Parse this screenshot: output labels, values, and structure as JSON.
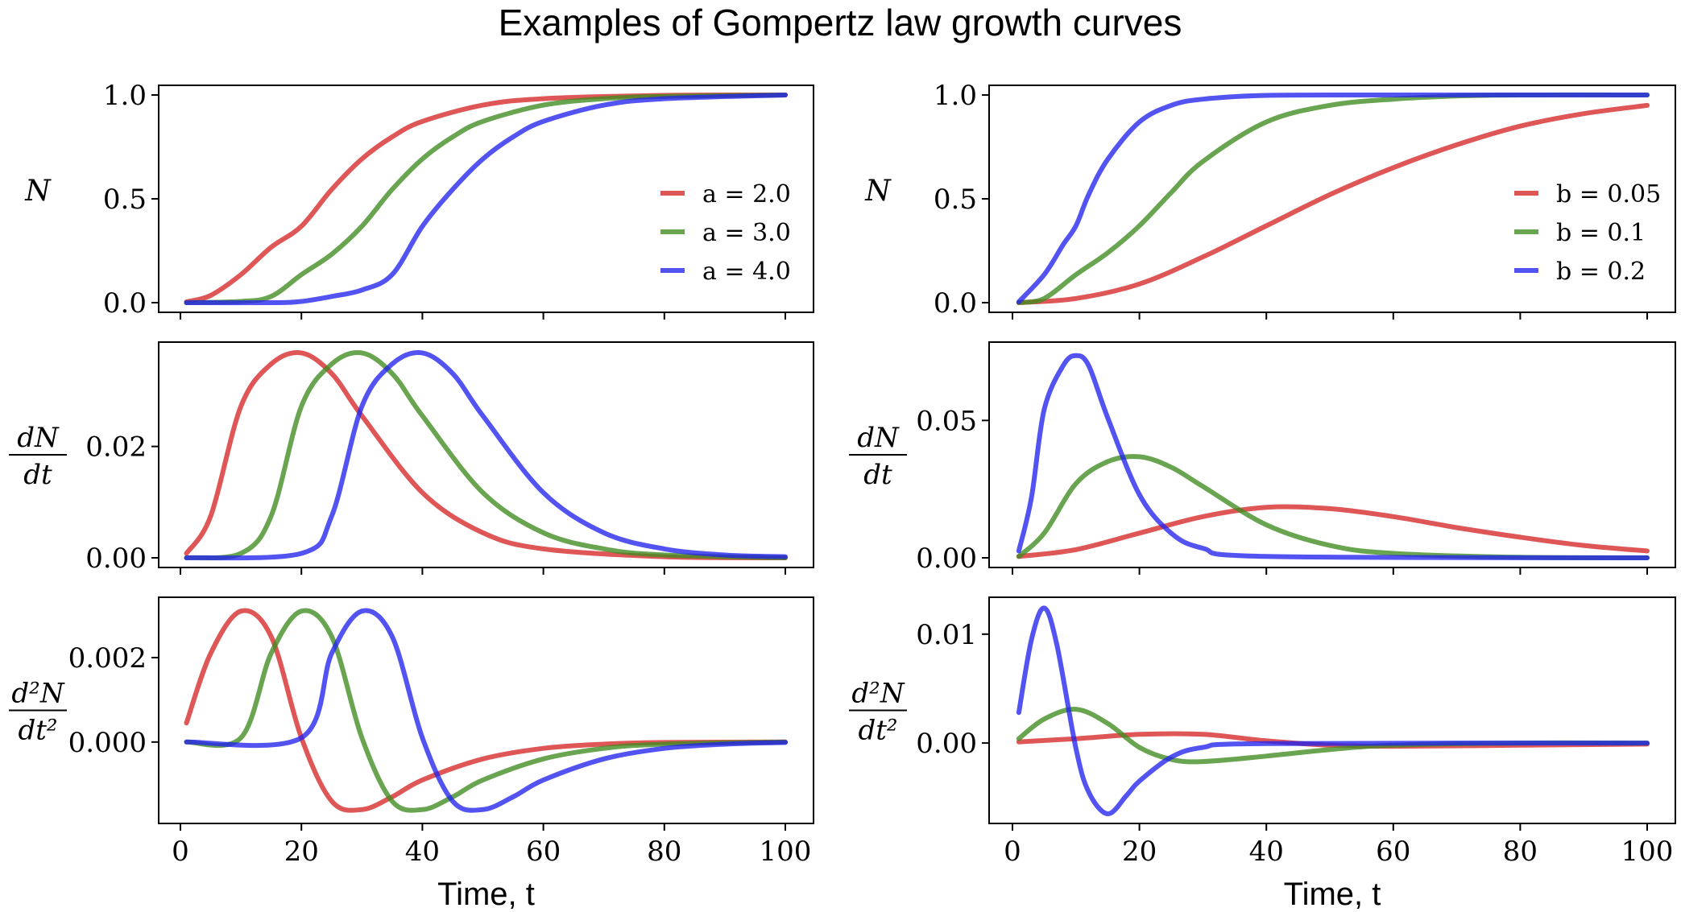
{
  "figure": {
    "title": "Examples of Gompertz law growth curves"
  },
  "colors": {
    "red": "#d62728",
    "green": "#3f8a1f",
    "blue": "#2222ee"
  },
  "chart_data": [
    {
      "type": "line",
      "panel": "left-top",
      "ylabel": "N",
      "xlabel": "",
      "xlim": [
        0,
        100
      ],
      "ylim": [
        0,
        1
      ],
      "xticks": [
        0,
        20,
        40,
        60,
        80,
        100
      ],
      "yticks": [
        "0.0",
        "0.5",
        "1.0"
      ],
      "legend_position": "right",
      "series": [
        {
          "name": "a = 2.0",
          "color": "#d62728",
          "x": [
            1,
            5,
            10,
            15,
            20,
            25,
            30,
            35,
            40,
            50,
            60,
            80,
            100
          ],
          "y": [
            0.004,
            0.035,
            0.135,
            0.267,
            0.368,
            0.545,
            0.692,
            0.798,
            0.873,
            0.951,
            0.982,
            0.998,
            1.0
          ]
        },
        {
          "name": "a = 3.0",
          "color": "#3f8a1f",
          "x": [
            1,
            10,
            15,
            20,
            25,
            30,
            35,
            40,
            45,
            50,
            60,
            70,
            80,
            100
          ],
          "y": [
            0.0,
            0.006,
            0.03,
            0.135,
            0.233,
            0.368,
            0.545,
            0.692,
            0.798,
            0.873,
            0.951,
            0.982,
            0.993,
            1.0
          ]
        },
        {
          "name": "a = 4.0",
          "color": "#2222ee",
          "x": [
            1,
            15,
            20,
            25,
            30,
            35,
            40,
            45,
            50,
            55,
            60,
            70,
            80,
            100
          ],
          "y": [
            0.0,
            0.0,
            0.006,
            0.03,
            0.061,
            0.135,
            0.368,
            0.545,
            0.692,
            0.798,
            0.873,
            0.951,
            0.982,
            1.0
          ]
        }
      ]
    },
    {
      "type": "line",
      "panel": "left-middle",
      "ylabel": "dN/dt",
      "xlabel": "",
      "xlim": [
        0,
        100
      ],
      "ylim": [
        0,
        0.037
      ],
      "xticks": [
        0,
        20,
        40,
        60,
        80,
        100
      ],
      "yticks": [
        "0.00",
        "0.02"
      ],
      "series": [
        {
          "name": "a = 2.0",
          "color": "#d62728",
          "x": [
            1,
            5,
            10,
            15,
            20,
            25,
            30,
            40,
            50,
            60,
            80,
            100
          ],
          "y": [
            0.0008,
            0.0075,
            0.0272,
            0.0348,
            0.0368,
            0.0331,
            0.0255,
            0.0117,
            0.0045,
            0.0016,
            0.0002,
            0.0
          ]
        },
        {
          "name": "a = 3.0",
          "color": "#3f8a1f",
          "x": [
            1,
            10,
            15,
            20,
            25,
            30,
            35,
            40,
            50,
            60,
            70,
            80,
            100
          ],
          "y": [
            0.0,
            0.0008,
            0.0075,
            0.0272,
            0.0348,
            0.0368,
            0.0331,
            0.0255,
            0.0117,
            0.0045,
            0.0016,
            0.0005,
            0.0
          ]
        },
        {
          "name": "a = 4.0",
          "color": "#2222ee",
          "x": [
            1,
            20,
            25,
            30,
            35,
            40,
            45,
            50,
            60,
            70,
            80,
            90,
            100
          ],
          "y": [
            0.0,
            0.0008,
            0.0075,
            0.0272,
            0.0348,
            0.0368,
            0.0331,
            0.0255,
            0.0117,
            0.0045,
            0.0016,
            0.0005,
            0.0002
          ]
        }
      ]
    },
    {
      "type": "line",
      "panel": "left-bottom",
      "ylabel": "d²N/dt²",
      "xlabel": "Time, t",
      "xlim": [
        0,
        100
      ],
      "ylim": [
        -0.0017,
        0.0032
      ],
      "xticks": [
        0,
        20,
        40,
        60,
        80,
        100
      ],
      "yticks": [
        "0.000",
        "0.002"
      ],
      "series": [
        {
          "name": "a = 2.0",
          "color": "#d62728",
          "x": [
            1,
            5,
            10,
            15,
            20,
            25,
            30,
            35,
            40,
            50,
            60,
            70,
            80,
            100
          ],
          "y": [
            0.00045,
            0.0021,
            0.0031,
            0.0025,
            0.0001,
            -0.0014,
            -0.0016,
            -0.0013,
            -0.0009,
            -0.0004,
            -0.00015,
            -5e-05,
            -1e-05,
            0.0
          ]
        },
        {
          "name": "a = 3.0",
          "color": "#3f8a1f",
          "x": [
            1,
            10,
            15,
            20,
            25,
            30,
            35,
            40,
            45,
            50,
            60,
            70,
            80,
            100
          ],
          "y": [
            0.0,
            0.0001,
            0.0021,
            0.0031,
            0.0025,
            0.0001,
            -0.0014,
            -0.0016,
            -0.0013,
            -0.0009,
            -0.0004,
            -0.00015,
            -5e-05,
            0.0
          ]
        },
        {
          "name": "a = 4.0",
          "color": "#2222ee",
          "x": [
            1,
            20,
            25,
            30,
            35,
            40,
            45,
            50,
            55,
            60,
            70,
            80,
            90,
            100
          ],
          "y": [
            0.0,
            0.0001,
            0.0021,
            0.0031,
            0.0025,
            0.0001,
            -0.0014,
            -0.0016,
            -0.0013,
            -0.0009,
            -0.0004,
            -0.00015,
            -5e-05,
            -1e-05
          ]
        }
      ]
    },
    {
      "type": "line",
      "panel": "right-top",
      "ylabel": "N",
      "xlabel": "",
      "xlim": [
        0,
        100
      ],
      "ylim": [
        0,
        1
      ],
      "xticks": [
        0,
        20,
        40,
        60,
        80,
        100
      ],
      "yticks": [
        "0.0",
        "0.5",
        "1.0"
      ],
      "legend_position": "right",
      "series": [
        {
          "name": "b = 0.05",
          "color": "#d62728",
          "x": [
            1,
            10,
            20,
            30,
            40,
            50,
            60,
            70,
            80,
            90,
            100
          ],
          "y": [
            0.0,
            0.02,
            0.09,
            0.22,
            0.37,
            0.52,
            0.65,
            0.76,
            0.85,
            0.91,
            0.95
          ]
        },
        {
          "name": "b = 0.1",
          "color": "#3f8a1f",
          "x": [
            1,
            5,
            10,
            15,
            20,
            25,
            30,
            40,
            50,
            60,
            70,
            80,
            100
          ],
          "y": [
            0.0,
            0.02,
            0.135,
            0.24,
            0.37,
            0.53,
            0.68,
            0.87,
            0.95,
            0.98,
            0.995,
            1.0,
            1.0
          ]
        },
        {
          "name": "b = 0.2",
          "color": "#2222ee",
          "x": [
            1,
            5,
            8,
            10,
            12,
            15,
            20,
            25,
            30,
            40,
            60,
            100
          ],
          "y": [
            0.004,
            0.135,
            0.28,
            0.37,
            0.52,
            0.69,
            0.87,
            0.95,
            0.98,
            0.998,
            1.0,
            1.0
          ]
        }
      ]
    },
    {
      "type": "line",
      "panel": "right-middle",
      "ylabel": "dN/dt",
      "xlabel": "",
      "xlim": [
        0,
        100
      ],
      "ylim": [
        0,
        0.075
      ],
      "xticks": [
        0,
        20,
        40,
        60,
        80,
        100
      ],
      "yticks": [
        "0.00",
        "0.05"
      ],
      "series": [
        {
          "name": "b = 0.05",
          "color": "#d62728",
          "x": [
            1,
            10,
            20,
            30,
            40,
            50,
            60,
            70,
            80,
            90,
            100
          ],
          "y": [
            0.0005,
            0.003,
            0.009,
            0.015,
            0.0184,
            0.0179,
            0.015,
            0.011,
            0.0075,
            0.0045,
            0.0025
          ]
        },
        {
          "name": "b = 0.1",
          "color": "#3f8a1f",
          "x": [
            1,
            5,
            10,
            15,
            20,
            25,
            30,
            40,
            50,
            60,
            80,
            100
          ],
          "y": [
            0.0005,
            0.009,
            0.027,
            0.035,
            0.0368,
            0.033,
            0.026,
            0.012,
            0.0045,
            0.0016,
            0.0002,
            0.0
          ]
        },
        {
          "name": "b = 0.2",
          "color": "#2222ee",
          "x": [
            1,
            3,
            5,
            8,
            10,
            12,
            15,
            20,
            25,
            30,
            40,
            100
          ],
          "y": [
            0.0025,
            0.022,
            0.054,
            0.07,
            0.0736,
            0.07,
            0.051,
            0.023,
            0.009,
            0.0035,
            0.0005,
            0.0
          ]
        }
      ]
    },
    {
      "type": "line",
      "panel": "right-bottom",
      "ylabel": "d²N/dt²",
      "xlabel": "Time, t",
      "xlim": [
        0,
        100
      ],
      "ylim": [
        -0.0065,
        0.0125
      ],
      "xticks": [
        0,
        20,
        40,
        60,
        80,
        100
      ],
      "yticks": [
        "0.00",
        "0.01"
      ],
      "series": [
        {
          "name": "b = 0.05",
          "color": "#d62728",
          "x": [
            1,
            10,
            20,
            30,
            40,
            50,
            60,
            80,
            100
          ],
          "y": [
            0.0001,
            0.0004,
            0.0008,
            0.0008,
            0.0002,
            -0.0002,
            -0.0003,
            -0.0002,
            -0.0001
          ]
        },
        {
          "name": "b = 0.1",
          "color": "#3f8a1f",
          "x": [
            1,
            5,
            10,
            15,
            20,
            25,
            30,
            40,
            50,
            60,
            80,
            100
          ],
          "y": [
            0.0004,
            0.0022,
            0.0031,
            0.0018,
            -0.0004,
            -0.0015,
            -0.0017,
            -0.0012,
            -0.0006,
            -0.0002,
            0.0,
            0.0
          ]
        },
        {
          "name": "b = 0.2",
          "color": "#2222ee",
          "x": [
            1,
            3,
            5,
            7,
            10,
            12,
            15,
            18,
            20,
            25,
            30,
            40,
            100
          ],
          "y": [
            0.0028,
            0.0095,
            0.0124,
            0.009,
            -0.0005,
            -0.0045,
            -0.0065,
            -0.0048,
            -0.0035,
            -0.0013,
            -0.0004,
            -5e-05,
            0.0
          ]
        }
      ]
    }
  ]
}
